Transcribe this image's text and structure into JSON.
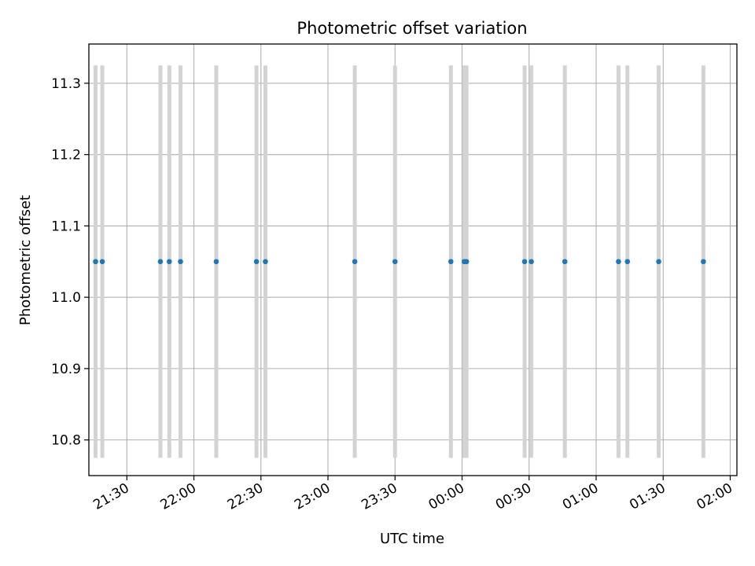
{
  "chart_data": {
    "type": "scatter",
    "title": "Photometric offset variation",
    "xlabel": "UTC time",
    "ylabel": "Photometric offset",
    "grid": true,
    "xlim": [
      "21:13",
      "02:03"
    ],
    "ylim": [
      10.75,
      11.355
    ],
    "x_ticks": [
      "21:30",
      "22:00",
      "22:30",
      "23:00",
      "23:30",
      "00:00",
      "00:30",
      "01:00",
      "01:30",
      "02:00"
    ],
    "y_ticks": [
      "10.8",
      "10.9",
      "11.0",
      "11.1",
      "11.2",
      "11.3"
    ],
    "y_tick_values": [
      10.8,
      10.9,
      11.0,
      11.1,
      11.2,
      11.3
    ],
    "error_bar_range": [
      10.775,
      11.325
    ],
    "colors": {
      "points": "#1f77b4",
      "error_bars": "#d3d3d3",
      "grid": "#b0b0b0"
    },
    "series": [
      {
        "x": [
          "21:16",
          "21:19",
          "21:45",
          "21:49",
          "21:54",
          "22:10",
          "22:28",
          "22:32",
          "23:12",
          "23:30",
          "23:55",
          "24:01",
          "24:02",
          "24:28",
          "24:31",
          "24:46",
          "25:10",
          "25:14",
          "25:28",
          "25:48"
        ],
        "y": [
          11.05,
          11.05,
          11.05,
          11.05,
          11.05,
          11.05,
          11.05,
          11.05,
          11.05,
          11.05,
          11.05,
          11.05,
          11.05,
          11.05,
          11.05,
          11.05,
          11.05,
          11.05,
          11.05,
          11.05
        ]
      }
    ]
  }
}
